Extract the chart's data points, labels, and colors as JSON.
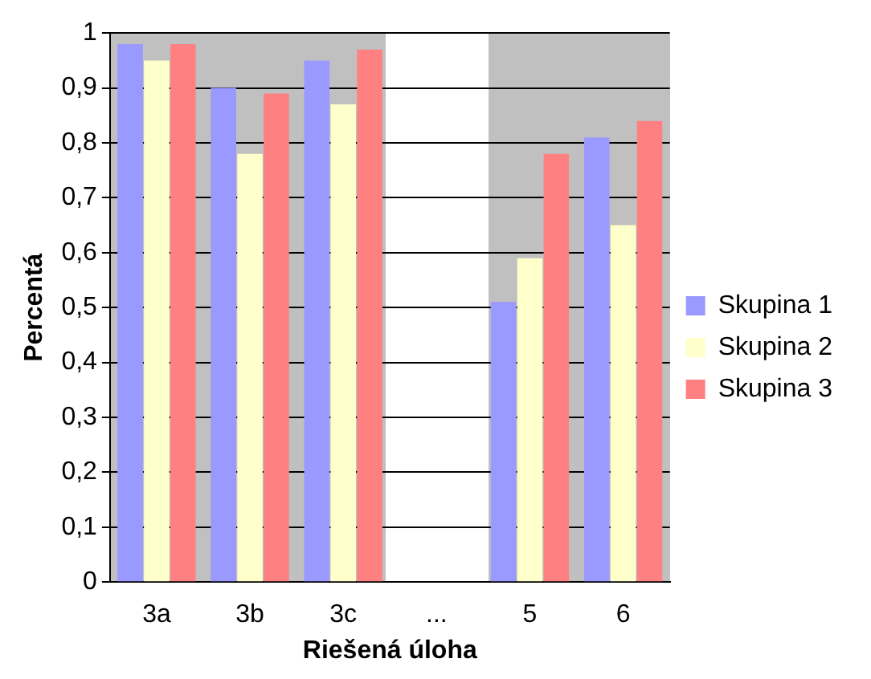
{
  "chart_data": {
    "type": "bar",
    "xlabel": "Riešená úloha",
    "ylabel": "Percentá",
    "categories": [
      "3a",
      "3b",
      "3c",
      "...",
      "5",
      "6"
    ],
    "series": [
      {
        "name": "Skupina 1",
        "color": "#9999ff",
        "values": [
          0.98,
          0.9,
          0.95,
          null,
          0.51,
          0.81
        ]
      },
      {
        "name": "Skupina 2",
        "color": "#ffffcc",
        "values": [
          0.95,
          0.78,
          0.87,
          null,
          0.59,
          0.65
        ]
      },
      {
        "name": "Skupina 3",
        "color": "#ff8080",
        "values": [
          0.98,
          0.89,
          0.97,
          null,
          0.78,
          0.84
        ]
      }
    ],
    "ylim": [
      0,
      1
    ],
    "yticks": [
      0,
      {
        "value": 0.1,
        "label": "0,1"
      },
      {
        "value": 0.2,
        "label": "0,2"
      },
      {
        "value": 0.3,
        "label": "0,3"
      },
      {
        "value": 0.4,
        "label": "0,4"
      },
      {
        "value": 0.5,
        "label": "0,5"
      },
      {
        "value": 0.6,
        "label": "0,6"
      },
      {
        "value": 0.7,
        "label": "0,7"
      },
      {
        "value": 0.8,
        "label": "0,8"
      },
      {
        "value": 0.9,
        "label": "0,9"
      },
      1
    ],
    "grid": "y",
    "legend": "right"
  }
}
